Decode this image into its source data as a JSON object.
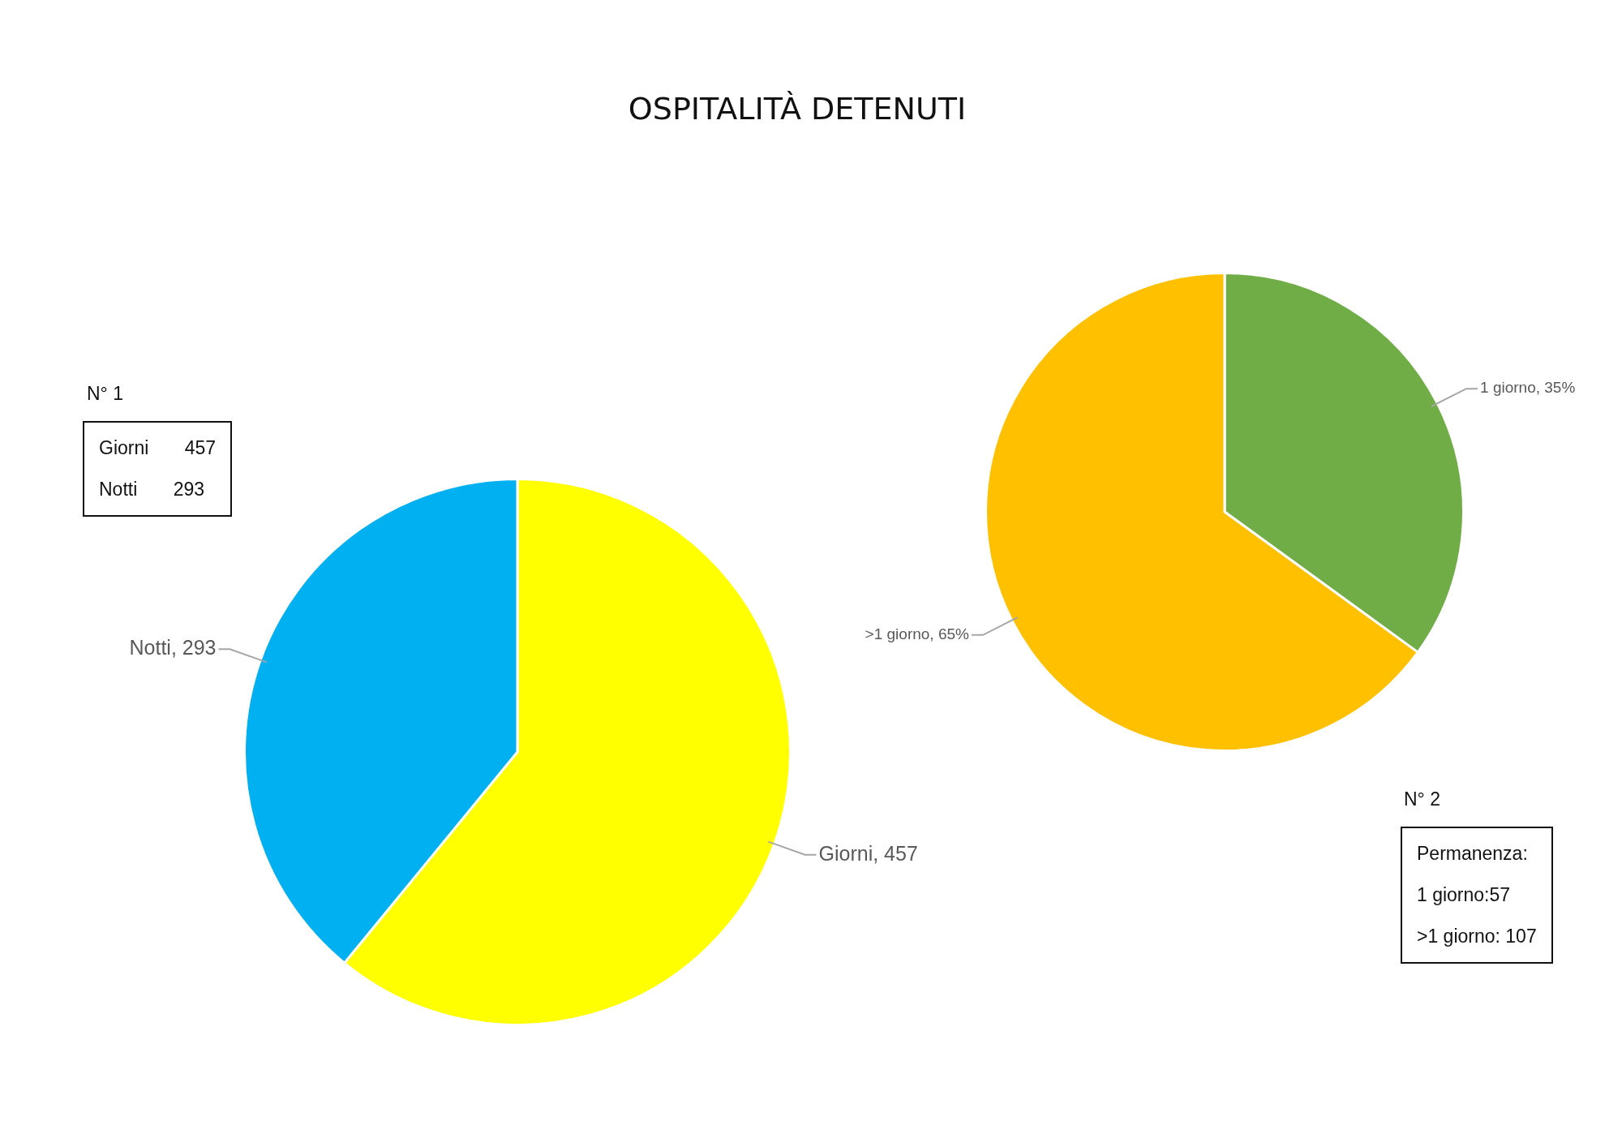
{
  "chart_data": [
    {
      "type": "pie",
      "title": "OSPITALITÀ DETENUTI",
      "categories": [
        "Giorni",
        "Notti"
      ],
      "values": [
        457,
        293
      ],
      "colors": [
        "#ffff00",
        "#00b0f0"
      ],
      "value_labels": [
        ", 457",
        ", 293"
      ],
      "legend": false,
      "annotations": [
        "N° 1",
        "Giorni 457",
        "Notti 293"
      ]
    },
    {
      "type": "pie",
      "categories": [
        "1 giorno",
        ">1 giorno"
      ],
      "values": [
        35,
        65
      ],
      "colors": [
        "#70ad47",
        "#ffc000"
      ],
      "value_labels": [
        ", 35%",
        ", 65%"
      ],
      "legend": false,
      "annotations": [
        "N° 2",
        "Permanenza:",
        "1 giorno:57",
        ">1 giorno: 107"
      ]
    }
  ]
}
